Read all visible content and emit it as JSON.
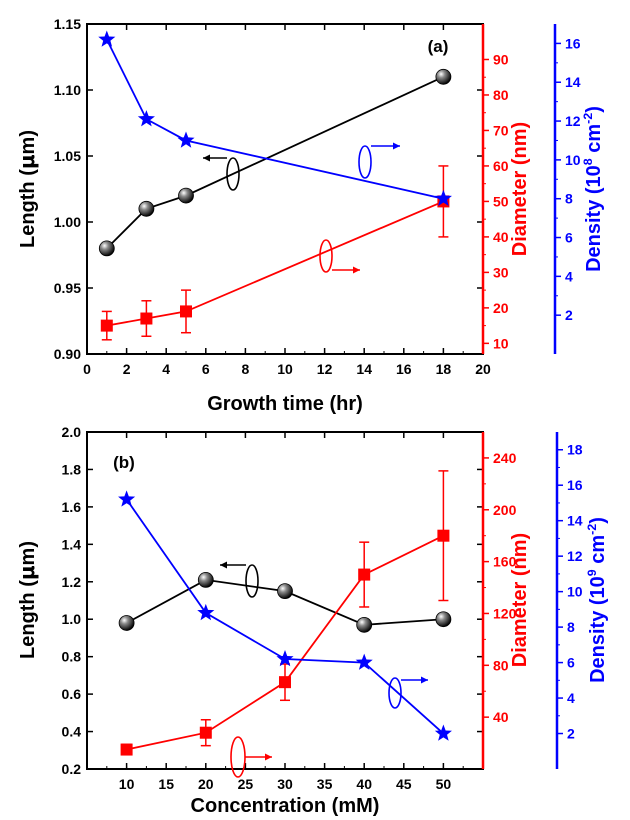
{
  "chart_data": [
    {
      "panel_label": "(a)",
      "type": "line",
      "xlabel": "Growth time (hr)",
      "xlim": [
        0,
        20
      ],
      "xticks": [
        0,
        2,
        4,
        6,
        8,
        10,
        12,
        14,
        16,
        18,
        20
      ],
      "axes": [
        {
          "id": "length",
          "label_parts": [
            "Length (",
            "μ",
            "m)"
          ],
          "color": "#000000",
          "lim": [
            0.9,
            1.15
          ],
          "ticks": [
            "0.90",
            "0.95",
            "1.00",
            "1.05",
            "1.10",
            "1.15"
          ]
        },
        {
          "id": "diameter",
          "label_parts": [
            "Diameter (nm)"
          ],
          "color": "#ff0000",
          "lim": [
            7,
            100
          ],
          "ticks": [
            "10",
            "20",
            "30",
            "40",
            "50",
            "60",
            "70",
            "80",
            "90"
          ]
        },
        {
          "id": "density",
          "label_parts": [
            "Density (10",
            "8",
            " cm",
            "-2",
            ")"
          ],
          "color": "#0000ff",
          "lim": [
            0,
            17
          ],
          "ticks": [
            "2",
            "4",
            "6",
            "8",
            "10",
            "12",
            "14",
            "16"
          ]
        }
      ],
      "series": [
        {
          "axis": "length",
          "marker": "sphere",
          "color": "#000000",
          "x": [
            1,
            3,
            5,
            18
          ],
          "y": [
            0.98,
            1.01,
            1.02,
            1.11
          ]
        },
        {
          "axis": "diameter",
          "marker": "square",
          "color": "#ff0000",
          "x": [
            1,
            3,
            5,
            18
          ],
          "y": [
            15,
            17,
            19,
            50
          ],
          "err": [
            4,
            5,
            6,
            10
          ]
        },
        {
          "axis": "density",
          "marker": "star",
          "color": "#0000ff",
          "x": [
            1,
            3,
            5,
            18
          ],
          "y": [
            16.2,
            12.1,
            11.0,
            8.0
          ]
        }
      ]
    },
    {
      "panel_label": "(b)",
      "type": "line",
      "xlabel": "Concentration (mM)",
      "xlim": [
        5,
        55
      ],
      "xticks": [
        10,
        15,
        20,
        25,
        30,
        35,
        40,
        45,
        50
      ],
      "axes": [
        {
          "id": "length",
          "label_parts": [
            "Length (",
            "μ",
            "m)"
          ],
          "color": "#000000",
          "lim": [
            0.2,
            2.0
          ],
          "ticks": [
            "0.2",
            "0.4",
            "0.6",
            "0.8",
            "1.0",
            "1.2",
            "1.4",
            "1.6",
            "1.8",
            "2.0"
          ]
        },
        {
          "id": "diameter",
          "label_parts": [
            "Diameter (nm)"
          ],
          "color": "#ff0000",
          "lim": [
            0,
            260
          ],
          "ticks": [
            "40",
            "80",
            "120",
            "160",
            "200",
            "240"
          ]
        },
        {
          "id": "density",
          "label_parts": [
            "Density (10",
            "9",
            " cm",
            "-2",
            ")"
          ],
          "color": "#0000ff",
          "lim": [
            0,
            19
          ],
          "ticks": [
            "2",
            "4",
            "6",
            "8",
            "10",
            "12",
            "14",
            "16",
            "18"
          ]
        }
      ],
      "series": [
        {
          "axis": "length",
          "marker": "sphere",
          "color": "#000000",
          "x": [
            10,
            20,
            30,
            40,
            50
          ],
          "y": [
            0.98,
            1.21,
            1.15,
            0.97,
            1.0
          ]
        },
        {
          "axis": "diameter",
          "marker": "square",
          "color": "#ff0000",
          "x": [
            10,
            20,
            30,
            40,
            50
          ],
          "y": [
            15,
            28,
            67,
            150,
            180
          ],
          "err": [
            4,
            10,
            14,
            25,
            50
          ]
        },
        {
          "axis": "density",
          "marker": "star",
          "color": "#0000ff",
          "x": [
            10,
            20,
            30,
            40,
            50
          ],
          "y": [
            15.2,
            8.8,
            6.2,
            6.0,
            2.0
          ]
        }
      ]
    }
  ]
}
